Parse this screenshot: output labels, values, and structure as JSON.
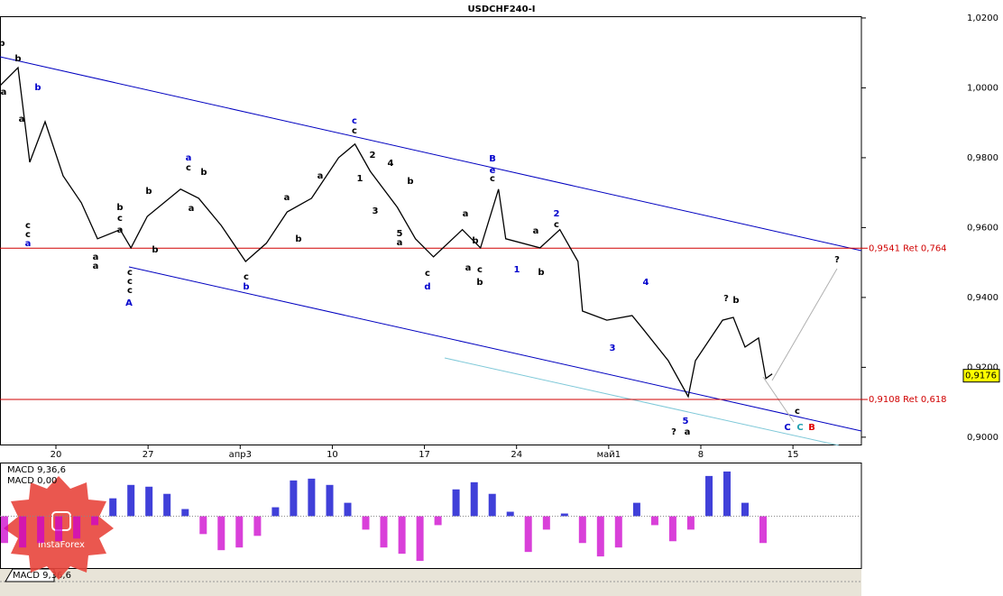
{
  "chart_data": [
    {
      "type": "line",
      "title": "USDCHF240-I",
      "color": "#000000",
      "x": [
        -4.25,
        -2.88,
        -1.99,
        -0.82,
        0.55,
        1.93,
        3.16,
        4.88,
        5.7,
        6.94,
        9.47,
        10.85,
        12.56,
        14.41,
        15.99,
        17.57,
        19.42,
        21.48,
        22.72,
        23.88,
        25.94,
        27.32,
        28.69,
        30.88,
        32.26,
        33.63,
        34.18,
        36.78,
        38.29,
        39.67,
        40.01,
        41.86,
        43.78,
        44.61,
        46.53,
        48.04,
        48.59,
        50.65,
        51.47,
        52.36,
        53.39,
        53.94,
        54.42
      ],
      "values": [
        1.0006,
        1.0058,
        0.9787,
        0.9903,
        0.9748,
        0.9671,
        0.9568,
        0.9594,
        0.9542,
        0.9632,
        0.971,
        0.9684,
        0.9606,
        0.9503,
        0.9555,
        0.9645,
        0.9684,
        0.98,
        0.9839,
        0.9761,
        0.9658,
        0.9568,
        0.9516,
        0.9594,
        0.9542,
        0.971,
        0.9568,
        0.9542,
        0.9594,
        0.9503,
        0.9361,
        0.9335,
        0.9348,
        0.931,
        0.9219,
        0.9116,
        0.9219,
        0.9335,
        0.9343,
        0.9258,
        0.9284,
        0.9168,
        0.9181
      ],
      "xlim": [
        -4.25,
        61.2
      ],
      "xticks": [
        {
          "value": 0,
          "label": "20"
        },
        {
          "value": 7,
          "label": "27"
        },
        {
          "value": 14,
          "label": "апр3"
        },
        {
          "value": 21,
          "label": "10"
        },
        {
          "value": 28,
          "label": "17"
        },
        {
          "value": 35,
          "label": "24"
        },
        {
          "value": 42,
          "label": "май1"
        },
        {
          "value": 49,
          "label": "8"
        },
        {
          "value": 56,
          "label": "15"
        }
      ],
      "ylim": [
        0.8979,
        1.0205
      ],
      "yticks": [
        {
          "value": 0.9,
          "label": "0,9000"
        },
        {
          "value": 0.92,
          "label": "0,9200"
        },
        {
          "value": 0.94,
          "label": "0,9400"
        },
        {
          "value": 0.96,
          "label": "0,9600"
        },
        {
          "value": 0.98,
          "label": "0,9800"
        },
        {
          "value": 1.0,
          "label": "1,0000"
        },
        {
          "value": 1.02,
          "label": "1,0200"
        }
      ],
      "levels": [
        {
          "value": 0.9541,
          "label": "0,9541 Ret 0,764"
        },
        {
          "value": 0.9108,
          "label": "0,9108 Ret 0,618"
        }
      ],
      "last_price": {
        "value": 0.9176,
        "label": "0,9176"
      },
      "wave_labels": [
        "b",
        "b",
        "a",
        "a",
        "b",
        "c",
        "c",
        "a",
        "a",
        "a",
        "b",
        "c",
        "a",
        "b",
        "b",
        "a",
        "c",
        "b",
        "a",
        "c",
        "c",
        "c",
        "A",
        "c",
        "b",
        "a",
        "b",
        "a",
        "c",
        "c",
        "2",
        "1",
        "3",
        "4",
        "b",
        "5",
        "a",
        "c",
        "d",
        "a",
        "a",
        "c",
        "b",
        "B",
        "e",
        "c",
        "b",
        "1",
        "2",
        "c",
        "a",
        "b",
        "3",
        "4",
        "5",
        "?",
        "a",
        "?",
        "b",
        "?",
        "c",
        "C",
        "C",
        "B"
      ]
    },
    {
      "type": "bar",
      "title": "MACD 9,36,6",
      "subtitle": "MACD 0,00",
      "tab": "MACD 9,36,6",
      "color_positive": "#0000cc",
      "color_negative": "#cc00cc",
      "x": [
        -3.91,
        -2.53,
        -1.16,
        0.21,
        1.58,
        2.95,
        4.33,
        5.7,
        7.07,
        8.44,
        9.82,
        11.19,
        12.56,
        13.93,
        15.31,
        16.68,
        18.05,
        19.42,
        20.8,
        22.17,
        23.54,
        24.91,
        26.29,
        27.66,
        29.03,
        30.4,
        31.78,
        33.15,
        34.52,
        35.89,
        37.27,
        38.64,
        40.01,
        41.38,
        42.75,
        44.13,
        45.5,
        46.87,
        48.24,
        49.62,
        50.99,
        52.36,
        53.73
      ],
      "values": [
        -30,
        -35,
        -30,
        -28,
        -25,
        -10,
        20,
        35,
        33,
        25,
        8,
        -20,
        -38,
        -35,
        -22,
        10,
        40,
        42,
        35,
        15,
        -15,
        -35,
        -42,
        -50,
        -10,
        30,
        38,
        25,
        5,
        -40,
        -15,
        3,
        -30,
        -45,
        -35,
        15,
        -10,
        -28,
        -15,
        45,
        50,
        15,
        -30
      ],
      "ylim": [
        -58,
        59
      ]
    },
    {
      "logo": "InstaForex"
    }
  ]
}
